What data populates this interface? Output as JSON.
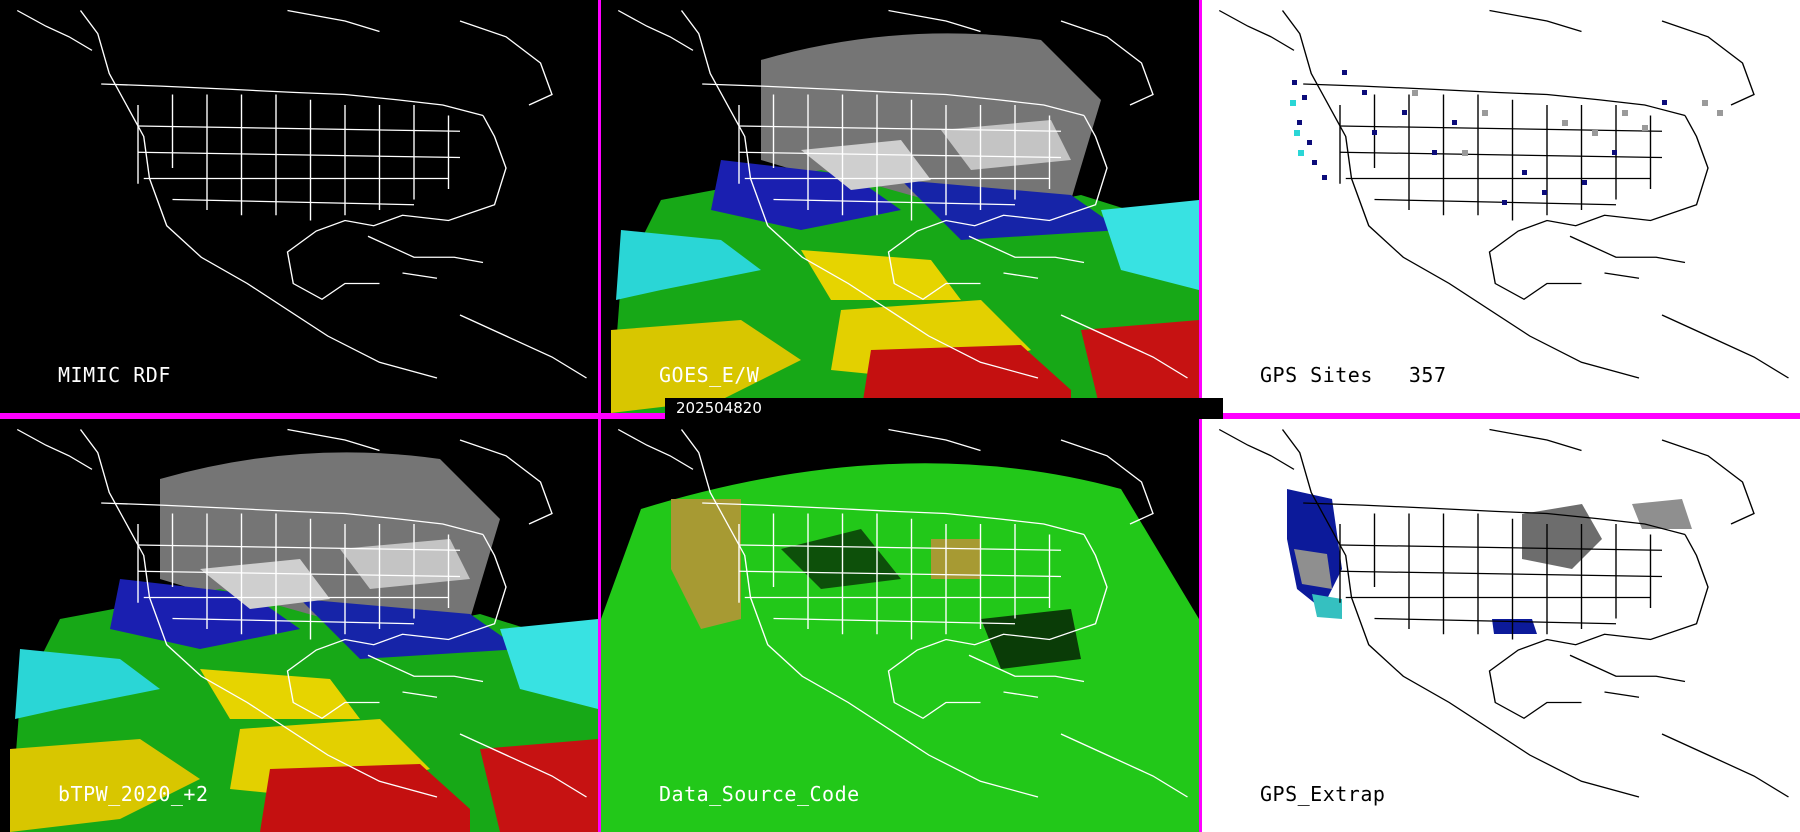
{
  "panels": [
    {
      "id": "mimic-rdf",
      "label": "MIMIC RDF",
      "theme": "dark"
    },
    {
      "id": "goes-ew",
      "label": "GOES_E/W",
      "theme": "dark"
    },
    {
      "id": "gps-sites",
      "label": "GPS Sites",
      "count": "357",
      "theme": "light"
    },
    {
      "id": "btpw",
      "label": "bTPW_2020_+2",
      "theme": "dark"
    },
    {
      "id": "data-source-code",
      "label": "Data_Source_Code",
      "theme": "dark"
    },
    {
      "id": "gps-extrap",
      "label": "GPS_Extrap",
      "theme": "light"
    }
  ],
  "timestamp": "202504820",
  "colors": {
    "divider": "#ff00ff",
    "dark_background": "#000000",
    "light_background": "#ffffff",
    "dark_coast": "#ffffff",
    "light_coast": "#000000",
    "tpw_high": "#c81010",
    "tpw_mid_high": "#e0d200",
    "tpw_mid": "#26c826",
    "tpw_low_mid": "#35e6e6",
    "tpw_low": "#0d1aa8",
    "tpw_very_low": "#9a9a9a",
    "source_green": "#22c819",
    "source_olive": "#a79a33"
  }
}
